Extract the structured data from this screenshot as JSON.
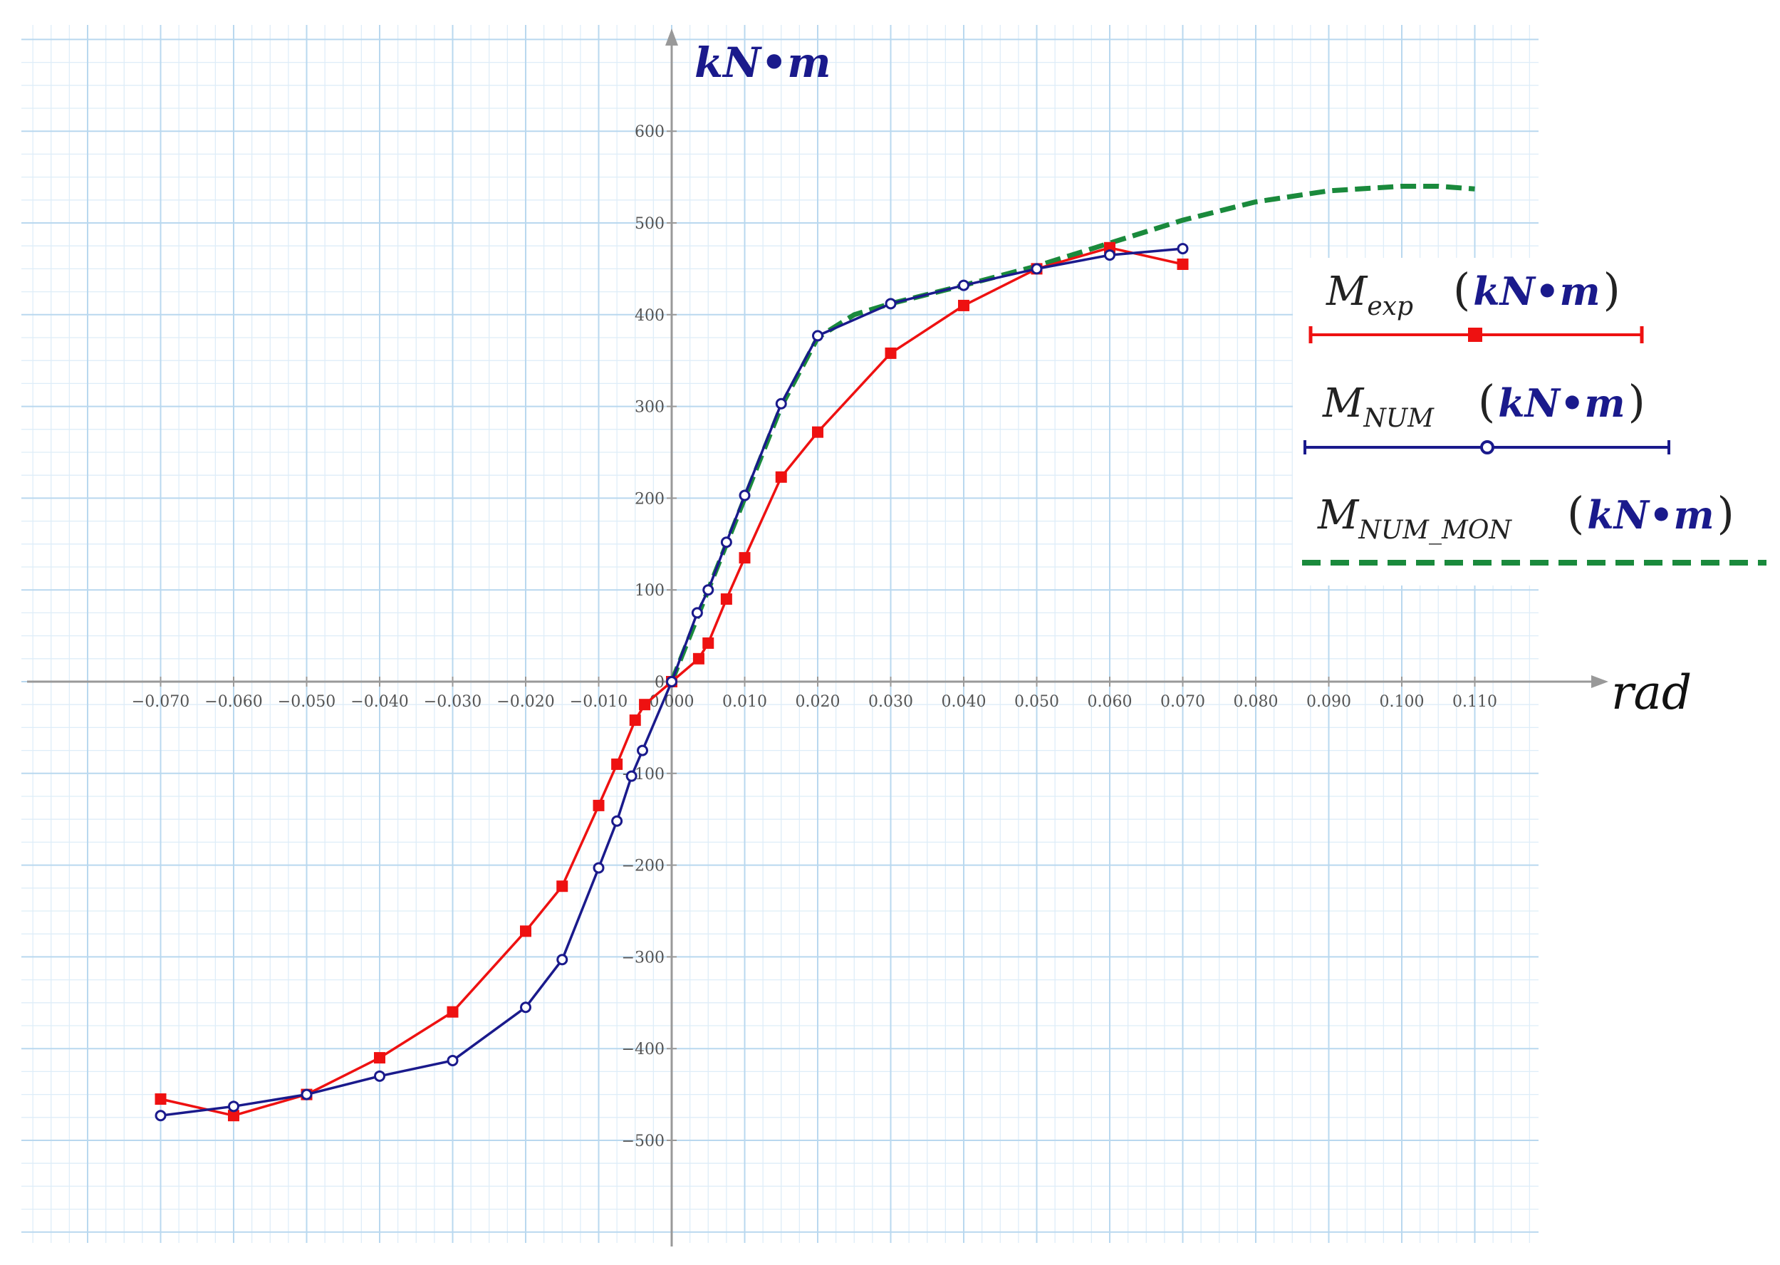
{
  "chart_data": {
    "type": "line",
    "title": "",
    "xlabel": "rad",
    "ylabel": "kN·m",
    "xlim": [
      -0.088,
      0.127
    ],
    "ylim": [
      -610,
      705
    ],
    "grid": true,
    "x_ticks": [
      {
        "value": -0.07,
        "label": "−0.070"
      },
      {
        "value": -0.06,
        "label": "−0.060"
      },
      {
        "value": -0.05,
        "label": "−0.050"
      },
      {
        "value": -0.04,
        "label": "−0.040"
      },
      {
        "value": -0.03,
        "label": "−0.030"
      },
      {
        "value": -0.02,
        "label": "−0.020"
      },
      {
        "value": -0.01,
        "label": "−0.010"
      },
      {
        "value": 0.0,
        "label": "0.000"
      },
      {
        "value": 0.01,
        "label": "0.010"
      },
      {
        "value": 0.02,
        "label": "0.020"
      },
      {
        "value": 0.03,
        "label": "0.030"
      },
      {
        "value": 0.04,
        "label": "0.040"
      },
      {
        "value": 0.05,
        "label": "0.050"
      },
      {
        "value": 0.06,
        "label": "0.060"
      },
      {
        "value": 0.07,
        "label": "0.070"
      },
      {
        "value": 0.08,
        "label": "0.080"
      },
      {
        "value": 0.09,
        "label": "0.090"
      },
      {
        "value": 0.1,
        "label": "0.100"
      },
      {
        "value": 0.11,
        "label": "0.110"
      }
    ],
    "y_ticks": [
      {
        "value": 600,
        "label": "600"
      },
      {
        "value": 500,
        "label": "500"
      },
      {
        "value": 400,
        "label": "400"
      },
      {
        "value": 300,
        "label": "300"
      },
      {
        "value": 200,
        "label": "200"
      },
      {
        "value": 100,
        "label": "100"
      },
      {
        "value": 0,
        "label": "0"
      },
      {
        "value": -100,
        "label": "−100"
      },
      {
        "value": -200,
        "label": "−200"
      },
      {
        "value": -300,
        "label": "−300"
      },
      {
        "value": -400,
        "label": "−400"
      },
      {
        "value": -500,
        "label": "−500"
      }
    ],
    "series": [
      {
        "name": "M_exp (kN·m)",
        "color": "#ee1111",
        "marker": "square",
        "dashed": false,
        "x": [
          -0.07,
          -0.06,
          -0.05,
          -0.04,
          -0.03,
          -0.02,
          -0.015,
          -0.01,
          -0.0075,
          -0.005,
          -0.0037,
          0.0,
          0.0037,
          0.005,
          0.0075,
          0.01,
          0.015,
          0.02,
          0.03,
          0.04,
          0.05,
          0.06,
          0.07
        ],
        "y": [
          -455,
          -473,
          -450,
          -410,
          -360,
          -272,
          -223,
          -135,
          -90,
          -42,
          -25,
          0,
          25,
          42,
          90,
          135,
          223,
          272,
          358,
          410,
          450,
          473,
          455
        ]
      },
      {
        "name": "M_NUM (kN·m)",
        "color": "#1a1a8c",
        "marker": "circle",
        "dashed": false,
        "x": [
          -0.07,
          -0.06,
          -0.05,
          -0.04,
          -0.03,
          -0.02,
          -0.015,
          -0.01,
          -0.0075,
          -0.0055,
          -0.004,
          0.0,
          0.0035,
          0.005,
          0.0075,
          0.01,
          0.015,
          0.02,
          0.03,
          0.04,
          0.05,
          0.06,
          0.07
        ],
        "y": [
          -473,
          -463,
          -450,
          -430,
          -413,
          -355,
          -303,
          -203,
          -152,
          -103,
          -75,
          0,
          75,
          100,
          152,
          203,
          303,
          377,
          412,
          432,
          450,
          465,
          472
        ]
      },
      {
        "name": "M_NUM_MON (kN·m)",
        "color": "#1a8a3c",
        "marker": "none",
        "dashed": true,
        "x": [
          0.0,
          0.005,
          0.01,
          0.015,
          0.02,
          0.025,
          0.03,
          0.04,
          0.05,
          0.06,
          0.07,
          0.08,
          0.09,
          0.1,
          0.105,
          0.11
        ],
        "y": [
          0,
          100,
          200,
          300,
          375,
          400,
          412,
          432,
          453,
          478,
          503,
          523,
          535,
          540,
          540,
          537
        ]
      }
    ],
    "legend": {
      "placement": "right",
      "items": [
        {
          "main": "M",
          "sub": "exp",
          "unit": "kN•m",
          "open": "(",
          "close": ")"
        },
        {
          "main": "M",
          "sub": "NUM",
          "unit": "kN•m",
          "open": "(",
          "close": ")"
        },
        {
          "main": "M",
          "sub": "NUM_MON",
          "unit": "kN•m",
          "open": "(",
          "close": ")"
        }
      ]
    },
    "axis_titles": {
      "y_text": "kN•m",
      "x_text": "rad"
    }
  }
}
